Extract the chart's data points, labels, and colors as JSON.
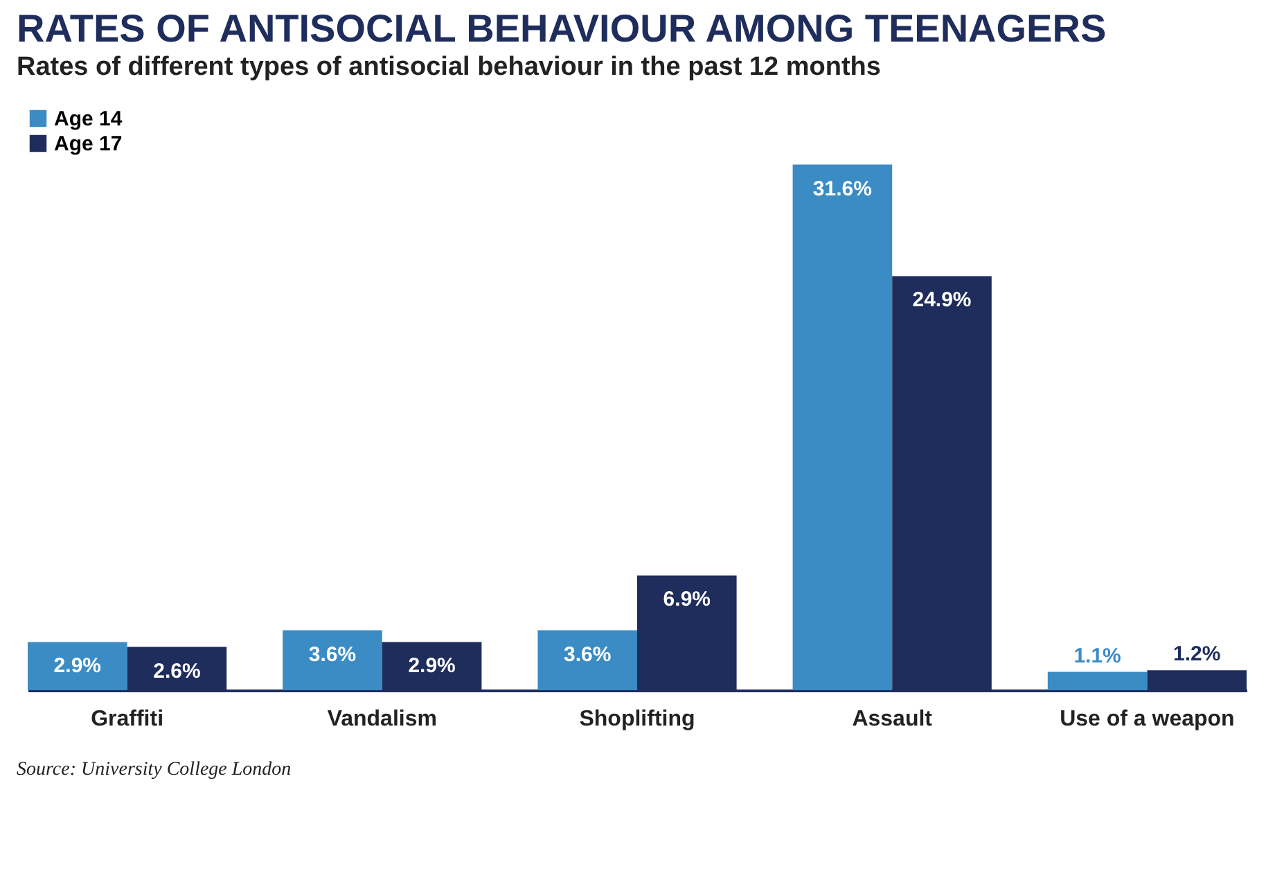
{
  "chart_data": {
    "type": "bar",
    "title": "RATES OF ANTISOCIAL BEHAVIOUR AMONG TEENAGERS",
    "subtitle": "Rates of different types of antisocial behaviour in the past 12 months",
    "categories": [
      "Graffiti",
      "Vandalism",
      "Shoplifting",
      "Assault",
      "Use of a weapon"
    ],
    "series": [
      {
        "name": "Age 14",
        "color": "#3b8bc4",
        "values": [
          2.9,
          3.6,
          3.6,
          31.6,
          1.1
        ],
        "value_labels": [
          "2.9%",
          "3.6%",
          "3.6%",
          "31.6%",
          "1.1%"
        ]
      },
      {
        "name": "Age 17",
        "color": "#1f2d5c",
        "values": [
          2.6,
          2.9,
          6.9,
          24.9,
          1.2
        ],
        "value_labels": [
          "2.6%",
          "2.9%",
          "6.9%",
          "24.9%",
          "1.2%"
        ]
      }
    ],
    "legend": "top left",
    "grid": false,
    "annotations": [
      "Source: University College London"
    ]
  }
}
